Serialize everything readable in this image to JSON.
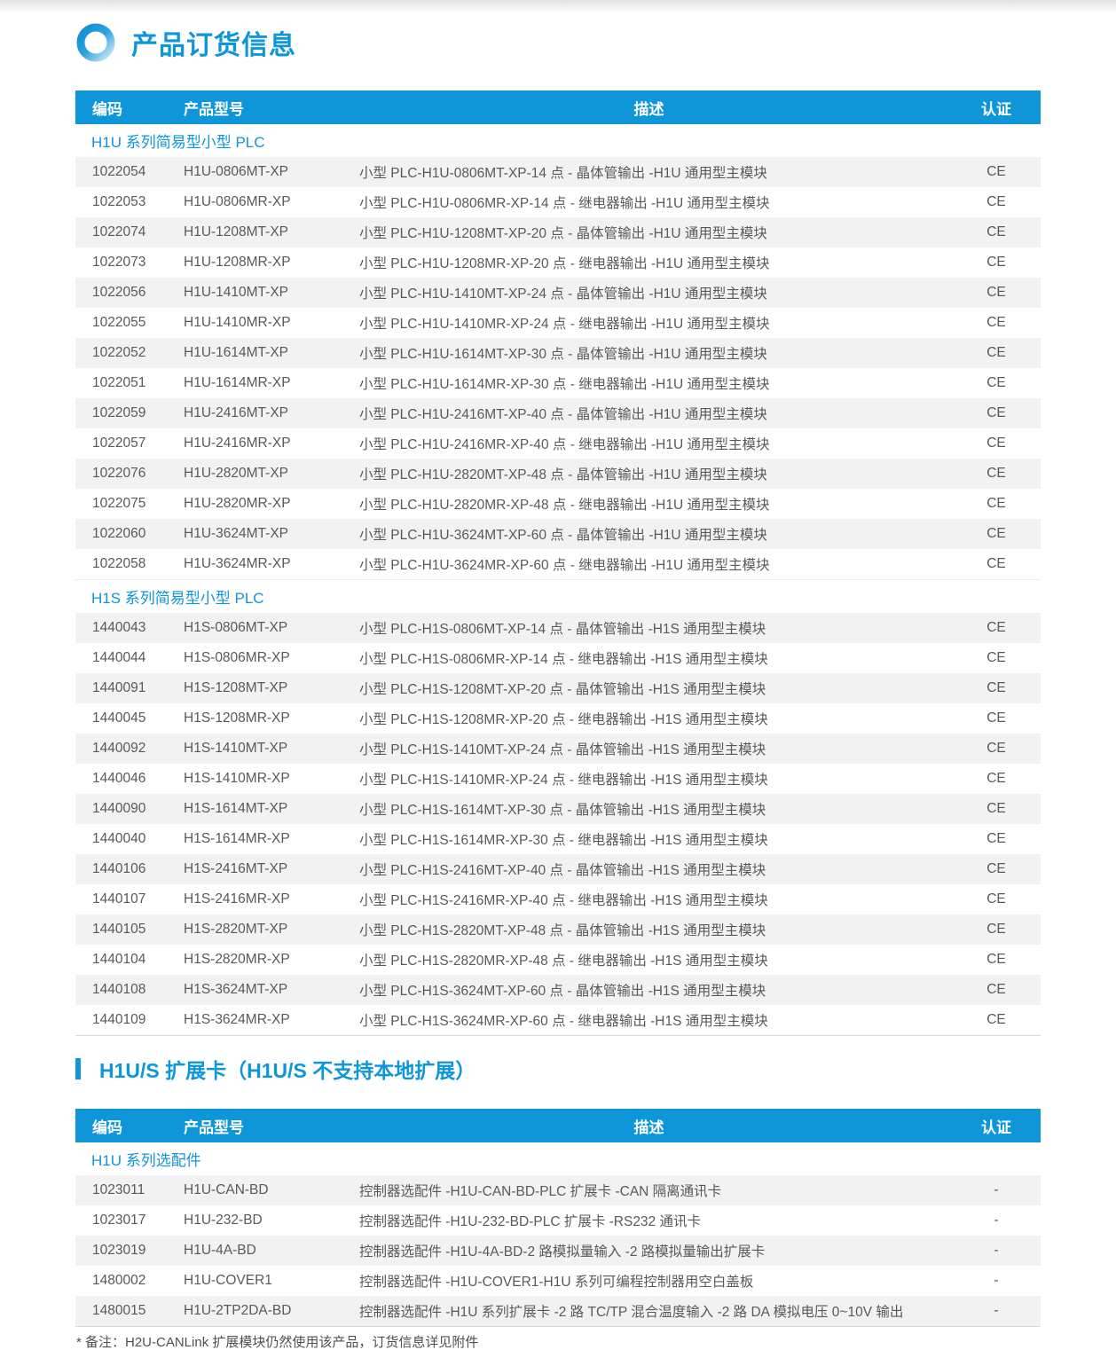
{
  "title": "产品订货信息",
  "footnote": "* 备注：H2U-CANLink 扩展模块仍然使用该产品，订货信息详见附件",
  "colors": {
    "accent": "#0f96d8",
    "stripe": "#f2f2f2",
    "body_text": "#58595b",
    "header_text": "#ffffff"
  },
  "icons": {
    "title_icon": "ring-icon",
    "heading_marker": "blue-bar-icon"
  },
  "columns": [
    "编码",
    "产品型号",
    "描述",
    "认证"
  ],
  "column_keys": [
    "code",
    "model",
    "description",
    "certification"
  ],
  "tables": [
    {
      "heading": null,
      "sections": [
        {
          "label": "H1U 系列简易型小型 PLC",
          "rows": [
            [
              "1022054",
              "H1U-0806MT-XP",
              "小型 PLC-H1U-0806MT-XP-14 点 - 晶体管输出 -H1U 通用型主模块",
              "CE"
            ],
            [
              "1022053",
              "H1U-0806MR-XP",
              "小型 PLC-H1U-0806MR-XP-14 点 - 继电器输出 -H1U 通用型主模块",
              "CE"
            ],
            [
              "1022074",
              "H1U-1208MT-XP",
              "小型 PLC-H1U-1208MT-XP-20 点 - 晶体管输出 -H1U 通用型主模块",
              "CE"
            ],
            [
              "1022073",
              "H1U-1208MR-XP",
              "小型 PLC-H1U-1208MR-XP-20 点 - 继电器输出 -H1U 通用型主模块",
              "CE"
            ],
            [
              "1022056",
              "H1U-1410MT-XP",
              "小型 PLC-H1U-1410MT-XP-24 点 - 晶体管输出 -H1U 通用型主模块",
              "CE"
            ],
            [
              "1022055",
              "H1U-1410MR-XP",
              "小型 PLC-H1U-1410MR-XP-24 点 - 继电器输出 -H1U 通用型主模块",
              "CE"
            ],
            [
              "1022052",
              "H1U-1614MT-XP",
              "小型 PLC-H1U-1614MT-XP-30 点 - 晶体管输出 -H1U 通用型主模块",
              "CE"
            ],
            [
              "1022051",
              "H1U-1614MR-XP",
              "小型 PLC-H1U-1614MR-XP-30 点 - 继电器输出 -H1U 通用型主模块",
              "CE"
            ],
            [
              "1022059",
              "H1U-2416MT-XP",
              "小型 PLC-H1U-2416MT-XP-40 点 - 晶体管输出 -H1U 通用型主模块",
              "CE"
            ],
            [
              "1022057",
              "H1U-2416MR-XP",
              "小型 PLC-H1U-2416MR-XP-40 点 - 继电器输出 -H1U 通用型主模块",
              "CE"
            ],
            [
              "1022076",
              "H1U-2820MT-XP",
              "小型 PLC-H1U-2820MT-XP-48 点 - 晶体管输出 -H1U 通用型主模块",
              "CE"
            ],
            [
              "1022075",
              "H1U-2820MR-XP",
              "小型 PLC-H1U-2820MR-XP-48 点 - 继电器输出 -H1U 通用型主模块",
              "CE"
            ],
            [
              "1022060",
              "H1U-3624MT-XP",
              "小型 PLC-H1U-3624MT-XP-60 点 - 晶体管输出 -H1U 通用型主模块",
              "CE"
            ],
            [
              "1022058",
              "H1U-3624MR-XP",
              "小型 PLC-H1U-3624MR-XP-60 点 - 继电器输出 -H1U 通用型主模块",
              "CE"
            ]
          ]
        },
        {
          "label": "H1S 系列简易型小型 PLC",
          "rows": [
            [
              "1440043",
              "H1S-0806MT-XP",
              "小型 PLC-H1S-0806MT-XP-14 点 - 晶体管输出 -H1S 通用型主模块",
              "CE"
            ],
            [
              "1440044",
              "H1S-0806MR-XP",
              "小型 PLC-H1S-0806MR-XP-14 点 - 继电器输出 -H1S 通用型主模块",
              "CE"
            ],
            [
              "1440091",
              "H1S-1208MT-XP",
              "小型 PLC-H1S-1208MT-XP-20 点 - 晶体管输出 -H1S 通用型主模块",
              "CE"
            ],
            [
              "1440045",
              "H1S-1208MR-XP",
              "小型 PLC-H1S-1208MR-XP-20 点 - 继电器输出 -H1S 通用型主模块",
              "CE"
            ],
            [
              "1440092",
              "H1S-1410MT-XP",
              "小型 PLC-H1S-1410MT-XP-24 点 - 晶体管输出 -H1S 通用型主模块",
              "CE"
            ],
            [
              "1440046",
              "H1S-1410MR-XP",
              "小型 PLC-H1S-1410MR-XP-24 点 - 继电器输出 -H1S 通用型主模块",
              "CE"
            ],
            [
              "1440090",
              "H1S-1614MT-XP",
              "小型 PLC-H1S-1614MT-XP-30 点 - 晶体管输出 -H1S 通用型主模块",
              "CE"
            ],
            [
              "1440040",
              "H1S-1614MR-XP",
              "小型 PLC-H1S-1614MR-XP-30 点 - 继电器输出 -H1S 通用型主模块",
              "CE"
            ],
            [
              "1440106",
              "H1S-2416MT-XP",
              "小型 PLC-H1S-2416MT-XP-40 点 - 晶体管输出 -H1S 通用型主模块",
              "CE"
            ],
            [
              "1440107",
              "H1S-2416MR-XP",
              "小型 PLC-H1S-2416MR-XP-40 点 - 继电器输出 -H1S 通用型主模块",
              "CE"
            ],
            [
              "1440105",
              "H1S-2820MT-XP",
              "小型 PLC-H1S-2820MT-XP-48 点 - 晶体管输出 -H1S 通用型主模块",
              "CE"
            ],
            [
              "1440104",
              "H1S-2820MR-XP",
              "小型 PLC-H1S-2820MR-XP-48 点 - 继电器输出 -H1S 通用型主模块",
              "CE"
            ],
            [
              "1440108",
              "H1S-3624MT-XP",
              "小型 PLC-H1S-3624MT-XP-60 点 - 晶体管输出 -H1S 通用型主模块",
              "CE"
            ],
            [
              "1440109",
              "H1S-3624MR-XP",
              "小型 PLC-H1S-3624MR-XP-60 点 - 继电器输出 -H1S 通用型主模块",
              "CE"
            ]
          ]
        }
      ]
    },
    {
      "heading": "H1U/S 扩展卡（H1U/S 不支持本地扩展）",
      "sections": [
        {
          "label": "H1U 系列选配件",
          "rows": [
            [
              "1023011",
              "H1U-CAN-BD",
              "控制器选配件 -H1U-CAN-BD-PLC 扩展卡 -CAN 隔离通讯卡",
              "-"
            ],
            [
              "1023017",
              "H1U-232-BD",
              "控制器选配件 -H1U-232-BD-PLC 扩展卡 -RS232 通讯卡",
              "-"
            ],
            [
              "1023019",
              "H1U-4A-BD",
              "控制器选配件 -H1U-4A-BD-2 路模拟量输入 -2 路模拟量输出扩展卡",
              "-"
            ],
            [
              "1480002",
              "H1U-COVER1",
              "控制器选配件 -H1U-COVER1-H1U 系列可编程控制器用空白盖板",
              "-"
            ],
            [
              "1480015",
              "H1U-2TP2DA-BD",
              "控制器选配件 -H1U 系列扩展卡 -2 路 TC/TP 混合温度输入 -2 路 DA 模拟电压 0~10V 输出",
              "-"
            ]
          ]
        }
      ]
    }
  ]
}
